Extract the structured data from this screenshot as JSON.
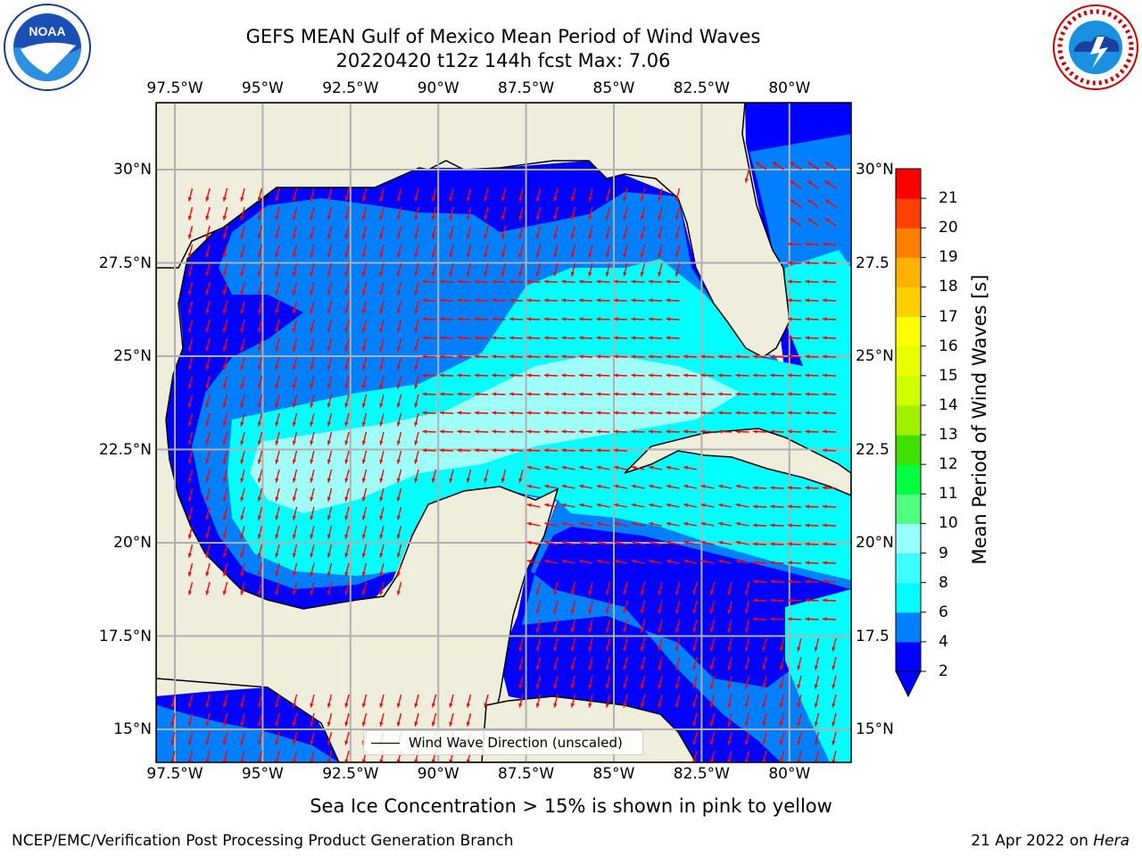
{
  "title": {
    "line1": "GEFS MEAN Gulf of Mexico Mean Period of Wind Waves",
    "line2": "20220420 t12z 144h fcst   Max: 7.06"
  },
  "axes": {
    "longitude_ticks": [
      "97.5°W",
      "95°W",
      "92.5°W",
      "90°W",
      "87.5°W",
      "85°W",
      "82.5°W",
      "80°W"
    ],
    "latitude_ticks_left": [
      "30°N",
      "27.5°N",
      "25°N",
      "22.5°N",
      "20°N",
      "17.5°N",
      "15°N"
    ],
    "latitude_ticks_right": [
      "30°N",
      "27.5",
      "25°N",
      "22.5",
      "20°N",
      "17.5",
      "15°N"
    ]
  },
  "colorbar": {
    "label": "Mean Period of Wind Waves [s]",
    "ticks": [
      "2",
      "4",
      "6",
      "8",
      "9",
      "10",
      "11",
      "12",
      "13",
      "14",
      "15",
      "16",
      "17",
      "18",
      "19",
      "20",
      "21"
    ],
    "colors": [
      "#0000ff",
      "#0080ff",
      "#00ffff",
      "#40ffff",
      "#99ffff",
      "#50ff80",
      "#00ff40",
      "#40e000",
      "#a0f000",
      "#d0ff00",
      "#e8ff00",
      "#ffff00",
      "#ffd000",
      "#ffb000",
      "#ff8000",
      "#ff4000",
      "#ff0000"
    ]
  },
  "legend": {
    "label": "Wind Wave Direction (unscaled)"
  },
  "note": "Sea Ice Concentration > 15% is shown in pink to yellow",
  "credit": "NCEP/EMC/Verification Post Processing Product Generation Branch",
  "date": {
    "text": "21 Apr 2022 on ",
    "host": "Hera"
  },
  "logos": {
    "left": "noaa-logo",
    "right": "nws-logo"
  },
  "colors": {
    "land": "#efeddb",
    "deep_blue": "#0000ff",
    "mid_blue": "#0080ff",
    "cyan": "#00ffff",
    "pale_cyan": "#9ffff8",
    "arrow": "#ff0000",
    "grid": "#b0b0b0"
  }
}
